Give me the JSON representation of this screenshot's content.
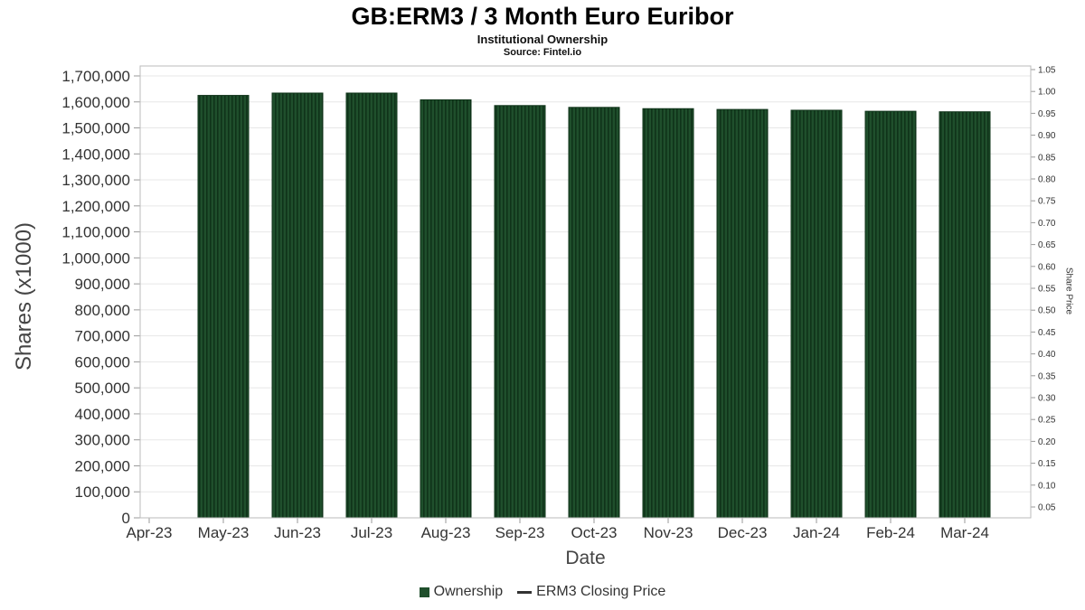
{
  "header": {
    "title": "GB:ERM3 / 3 Month Euro Euribor",
    "subtitle": "Institutional Ownership",
    "source": "Source: Fintel.io"
  },
  "chart_data": {
    "type": "bar",
    "title": "GB:ERM3 / 3 Month Euro Euribor",
    "subtitle": "Institutional Ownership",
    "source": "Source: Fintel.io",
    "xlabel": "Date",
    "ylabel_left": "Shares (x1000)",
    "ylabel_right": "Share Price",
    "grid": true,
    "legend_position": "bottom",
    "categories": [
      "Apr-23",
      "May-23",
      "Jun-23",
      "Jul-23",
      "Aug-23",
      "Sep-23",
      "Oct-23",
      "Nov-23",
      "Dec-23",
      "Jan-24",
      "Feb-24",
      "Mar-24"
    ],
    "series": [
      {
        "name": "Ownership",
        "type": "bar",
        "color": "#1f4f2c",
        "stripe_color": "#0f3319",
        "values": [
          null,
          1625000,
          1634000,
          1634000,
          1608000,
          1586000,
          1579000,
          1574000,
          1571000,
          1568000,
          1564000,
          1562000
        ]
      },
      {
        "name": "ERM3 Closing Price",
        "type": "line",
        "color": "#333333",
        "values": []
      }
    ],
    "left_axis": {
      "min": 0,
      "max": 1700000,
      "tick_step": 100000,
      "tick_labels": [
        "0",
        "100,000",
        "200,000",
        "300,000",
        "400,000",
        "500,000",
        "600,000",
        "700,000",
        "800,000",
        "900,000",
        "1,000,000",
        "1,100,000",
        "1,200,000",
        "1,300,000",
        "1,400,000",
        "1,500,000",
        "1,600,000",
        "1,700,000"
      ]
    },
    "right_axis": {
      "min": 0.05,
      "max": 1.05,
      "tick_step": 0.05,
      "tick_labels": [
        "0.05",
        "0.10",
        "0.15",
        "0.20",
        "0.25",
        "0.30",
        "0.35",
        "0.40",
        "0.45",
        "0.50",
        "0.55",
        "0.60",
        "0.65",
        "0.70",
        "0.75",
        "0.80",
        "0.85",
        "0.90",
        "0.95",
        "1.00",
        "1.05"
      ]
    }
  },
  "legend": {
    "items": [
      {
        "label": "Ownership",
        "swatch": "square",
        "color": "#1f4f2c"
      },
      {
        "label": "ERM3 Closing Price",
        "swatch": "line",
        "color": "#333333"
      }
    ]
  },
  "colors": {
    "bar": "#1f4f2c",
    "bar_stripe": "#0f3319",
    "gridline": "#e7e7e7",
    "plot_border": "#bbbbbb",
    "tick": "#999999",
    "tick_text": "#333333"
  }
}
